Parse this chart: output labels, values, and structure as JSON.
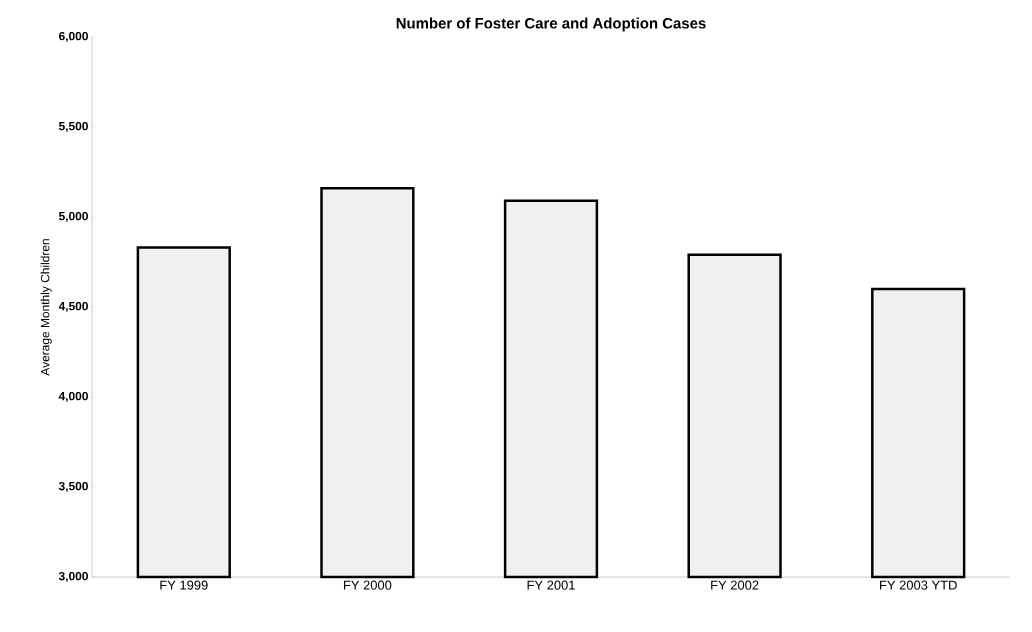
{
  "chart_data": {
    "type": "bar",
    "title": "Number of Foster Care and Adoption Cases",
    "ylabel": "Average Monthly Children",
    "categories": [
      "FY 1999",
      "FY 2000",
      "FY 2001",
      "FY 2002",
      "FY 2003 YTD"
    ],
    "values": [
      4830,
      5160,
      5090,
      4790,
      4600
    ],
    "color": "#f0f0f0",
    "ylim": [
      3000,
      6000
    ],
    "yticks": [
      {
        "value": 3000,
        "label": "3,000"
      },
      {
        "value": 3500,
        "label": "3,500"
      },
      {
        "value": 4000,
        "label": "4,000"
      },
      {
        "value": 4500,
        "label": "4,500"
      },
      {
        "value": 5000,
        "label": "5,000"
      },
      {
        "value": 5500,
        "label": "5,500"
      },
      {
        "value": 6000,
        "label": "6,000"
      }
    ]
  }
}
